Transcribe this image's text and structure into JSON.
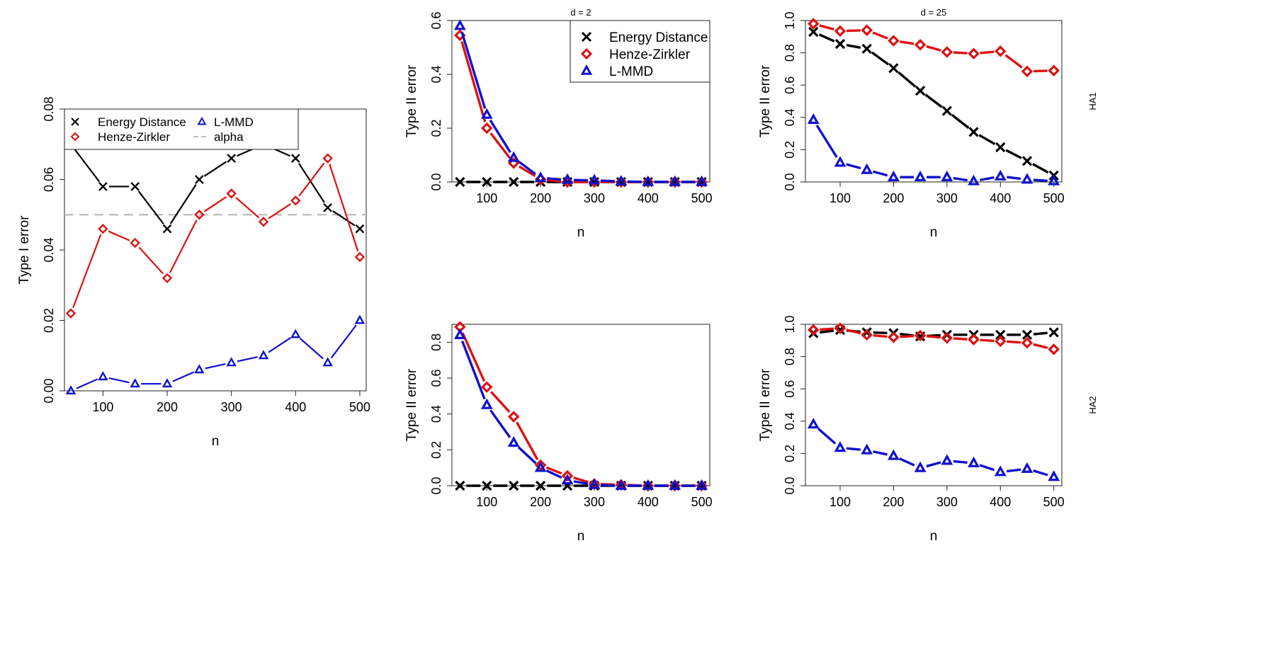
{
  "chart_data": [
    {
      "id": "p0",
      "type": "line",
      "title": "",
      "xlabel": "n",
      "ylabel": "Type I error",
      "xlim": [
        40,
        510
      ],
      "ylim": [
        0,
        0.08
      ],
      "xticks": [
        100,
        200,
        300,
        400,
        500
      ],
      "yticks": [
        0.0,
        0.02,
        0.04,
        0.06,
        0.08
      ],
      "ytick_labels": [
        "0.00",
        "0.02",
        "0.04",
        "0.06",
        "0.08"
      ],
      "x": [
        50,
        100,
        150,
        200,
        250,
        300,
        350,
        400,
        450,
        500
      ],
      "series": [
        {
          "name": "Energy Distance",
          "color": "#000000",
          "marker": "x",
          "values": [
            0.07,
            0.058,
            0.058,
            0.046,
            0.06,
            0.066,
            0.07,
            0.066,
            0.052,
            0.046
          ]
        },
        {
          "name": "Henze-Zirkler",
          "color": "#dd1111",
          "marker": "diamond",
          "values": [
            0.022,
            0.046,
            0.042,
            0.032,
            0.05,
            0.056,
            0.048,
            0.054,
            0.066,
            0.038
          ]
        },
        {
          "name": "L-MMD",
          "color": "#1111cc",
          "marker": "triangle",
          "values": [
            0.0,
            0.004,
            0.002,
            0.002,
            0.006,
            0.008,
            0.01,
            0.016,
            0.008,
            0.02
          ]
        }
      ],
      "hline": {
        "name": "alpha",
        "value": 0.05,
        "color": "#bbbbbb"
      },
      "legend": {
        "placement": "top-left",
        "entries": [
          "Energy Distance",
          "L-MMD",
          "Henze-Zirkler",
          "alpha"
        ]
      }
    },
    {
      "id": "p1",
      "type": "line",
      "title": "d = 2",
      "xlabel": "n",
      "ylabel": "Type II error",
      "xlim": [
        35,
        515
      ],
      "ylim": [
        0,
        0.6
      ],
      "xticks": [
        100,
        200,
        300,
        400,
        500
      ],
      "yticks": [
        0.0,
        0.2,
        0.4,
        0.6
      ],
      "ytick_labels": [
        "0.0",
        "0.2",
        "0.4",
        "0.6"
      ],
      "x": [
        50,
        100,
        150,
        200,
        250,
        300,
        350,
        400,
        450,
        500
      ],
      "series": [
        {
          "name": "Energy Distance",
          "color": "#000000",
          "marker": "x",
          "values": [
            0,
            0,
            0,
            0,
            0,
            0,
            0,
            0,
            0,
            0
          ]
        },
        {
          "name": "Henze-Zirkler",
          "color": "#dd1111",
          "marker": "diamond",
          "values": [
            0.545,
            0.2,
            0.07,
            0.01,
            0.0,
            0.0,
            0.0,
            0.0,
            0.0,
            0.0
          ]
        },
        {
          "name": "L-MMD",
          "color": "#1111cc",
          "marker": "triangle",
          "values": [
            0.58,
            0.25,
            0.09,
            0.015,
            0.008,
            0.006,
            0.002,
            0.0,
            0.0,
            0.0
          ]
        }
      ],
      "legend": {
        "placement": "top-right",
        "entries": [
          "Energy Distance",
          "Henze-Zirkler",
          "L-MMD"
        ]
      }
    },
    {
      "id": "p2",
      "type": "line",
      "title": "d = 25",
      "side_label": "HA1",
      "xlabel": "n",
      "ylabel": "Type II error",
      "xlim": [
        35,
        515
      ],
      "ylim": [
        0,
        1.0
      ],
      "xticks": [
        100,
        200,
        300,
        400,
        500
      ],
      "yticks": [
        0.0,
        0.2,
        0.4,
        0.6,
        0.8,
        1.0
      ],
      "ytick_labels": [
        "0.0",
        "0.2",
        "0.4",
        "0.6",
        "0.8",
        "1.0"
      ],
      "x": [
        50,
        100,
        150,
        200,
        250,
        300,
        350,
        400,
        450,
        500
      ],
      "series": [
        {
          "name": "Energy Distance",
          "color": "#000000",
          "marker": "x",
          "values": [
            0.93,
            0.855,
            0.825,
            0.705,
            0.565,
            0.44,
            0.31,
            0.215,
            0.13,
            0.04
          ]
        },
        {
          "name": "Henze-Zirkler",
          "color": "#dd1111",
          "marker": "diamond",
          "values": [
            0.98,
            0.935,
            0.94,
            0.875,
            0.85,
            0.805,
            0.795,
            0.81,
            0.685,
            0.69
          ]
        },
        {
          "name": "L-MMD",
          "color": "#1111cc",
          "marker": "triangle",
          "values": [
            0.385,
            0.12,
            0.075,
            0.03,
            0.03,
            0.03,
            0.005,
            0.035,
            0.015,
            0.005
          ]
        }
      ]
    },
    {
      "id": "p3",
      "type": "line",
      "title": "",
      "xlabel": "n",
      "ylabel": "Type II error",
      "xlim": [
        35,
        515
      ],
      "ylim": [
        0,
        0.9
      ],
      "xticks": [
        100,
        200,
        300,
        400,
        500
      ],
      "yticks": [
        0.0,
        0.2,
        0.4,
        0.6,
        0.8
      ],
      "ytick_labels": [
        "0.0",
        "0.2",
        "0.4",
        "0.6",
        "0.8"
      ],
      "x": [
        50,
        100,
        150,
        200,
        250,
        300,
        350,
        400,
        450,
        500
      ],
      "series": [
        {
          "name": "Energy Distance",
          "color": "#000000",
          "marker": "x",
          "values": [
            0,
            0,
            0,
            0,
            0,
            0,
            0,
            0,
            0,
            0
          ]
        },
        {
          "name": "Henze-Zirkler",
          "color": "#dd1111",
          "marker": "diamond",
          "values": [
            0.885,
            0.55,
            0.385,
            0.115,
            0.055,
            0.01,
            0.005,
            0.0,
            0.0,
            0.0
          ]
        },
        {
          "name": "L-MMD",
          "color": "#1111cc",
          "marker": "triangle",
          "values": [
            0.84,
            0.45,
            0.24,
            0.1,
            0.03,
            0.005,
            0.0,
            0.0,
            0.0,
            0.0
          ]
        }
      ]
    },
    {
      "id": "p4",
      "type": "line",
      "title": "",
      "side_label": "HA2",
      "xlabel": "n",
      "ylabel": "Type II error",
      "xlim": [
        35,
        515
      ],
      "ylim": [
        0,
        1.0
      ],
      "xticks": [
        100,
        200,
        300,
        400,
        500
      ],
      "yticks": [
        0.0,
        0.2,
        0.4,
        0.6,
        0.8,
        1.0
      ],
      "ytick_labels": [
        "0.0",
        "0.2",
        "0.4",
        "0.6",
        "0.8",
        "1.0"
      ],
      "x": [
        50,
        100,
        150,
        200,
        250,
        300,
        350,
        400,
        450,
        500
      ],
      "series": [
        {
          "name": "Energy Distance",
          "color": "#000000",
          "marker": "x",
          "values": [
            0.945,
            0.965,
            0.95,
            0.945,
            0.925,
            0.935,
            0.935,
            0.935,
            0.935,
            0.95
          ]
        },
        {
          "name": "Henze-Zirkler",
          "color": "#dd1111",
          "marker": "diamond",
          "values": [
            0.965,
            0.975,
            0.935,
            0.92,
            0.93,
            0.915,
            0.905,
            0.895,
            0.885,
            0.845
          ]
        },
        {
          "name": "L-MMD",
          "color": "#1111cc",
          "marker": "triangle",
          "values": [
            0.38,
            0.235,
            0.22,
            0.185,
            0.11,
            0.155,
            0.14,
            0.085,
            0.105,
            0.055
          ]
        }
      ]
    }
  ]
}
